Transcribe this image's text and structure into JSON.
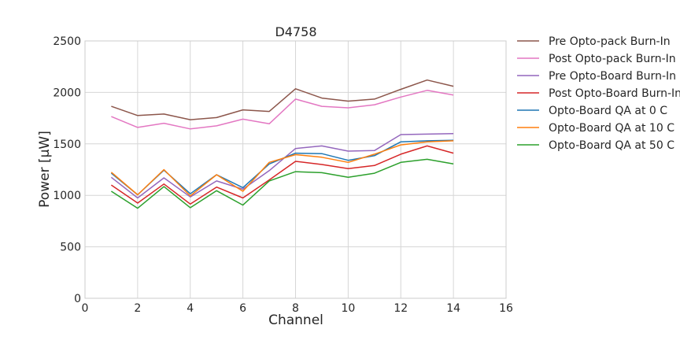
{
  "chart_data": {
    "type": "line",
    "title": "D4758",
    "xlabel": "Channel",
    "ylabel": "Power [μW]",
    "xlim": [
      0,
      16
    ],
    "ylim": [
      0,
      2500
    ],
    "xticks": [
      "0",
      "2",
      "4",
      "6",
      "8",
      "10",
      "12",
      "14",
      "16"
    ],
    "yticks": [
      "0",
      "500",
      "1000",
      "1500",
      "2000",
      "2500"
    ],
    "grid": true,
    "legend_position": "outside-right",
    "x": [
      1,
      2,
      3,
      4,
      5,
      6,
      7,
      8,
      9,
      10,
      11,
      12,
      13,
      14
    ],
    "series": [
      {
        "name": "Pre Opto-pack Burn-In",
        "color": "#8c564b",
        "values": [
          1865,
          1775,
          1790,
          1735,
          1755,
          1830,
          1815,
          2035,
          1945,
          1915,
          1935,
          2030,
          2120,
          2060
        ]
      },
      {
        "name": "Post Opto-pack Burn-In",
        "color": "#e377c2",
        "values": [
          1765,
          1660,
          1700,
          1645,
          1675,
          1740,
          1695,
          1935,
          1865,
          1850,
          1880,
          1955,
          2020,
          1975
        ]
      },
      {
        "name": "Pre Opto-Board Burn-In",
        "color": "#9467bd",
        "values": [
          1175,
          975,
          1170,
          985,
          1140,
          1060,
          1240,
          1455,
          1480,
          1430,
          1435,
          1590,
          1595,
          1600
        ]
      },
      {
        "name": "Post Opto-Board Burn-In",
        "color": "#d62728",
        "values": [
          1100,
          925,
          1110,
          915,
          1080,
          975,
          1150,
          1330,
          1300,
          1260,
          1290,
          1400,
          1480,
          1410
        ]
      },
      {
        "name": "Opto-Board QA at 0 C",
        "color": "#1f77b4",
        "values": [
          1215,
          1005,
          1245,
          1015,
          1200,
          1075,
          1305,
          1410,
          1405,
          1340,
          1385,
          1520,
          1530,
          1535
        ]
      },
      {
        "name": "Opto-Board QA at 10 C",
        "color": "#ff7f0e",
        "values": [
          1225,
          1005,
          1250,
          995,
          1200,
          1040,
          1320,
          1395,
          1370,
          1320,
          1400,
          1490,
          1520,
          1530
        ]
      },
      {
        "name": "Opto-Board QA at 50 C",
        "color": "#2ca02c",
        "values": [
          1040,
          875,
          1085,
          880,
          1045,
          905,
          1140,
          1230,
          1220,
          1175,
          1215,
          1320,
          1350,
          1305
        ]
      }
    ]
  }
}
